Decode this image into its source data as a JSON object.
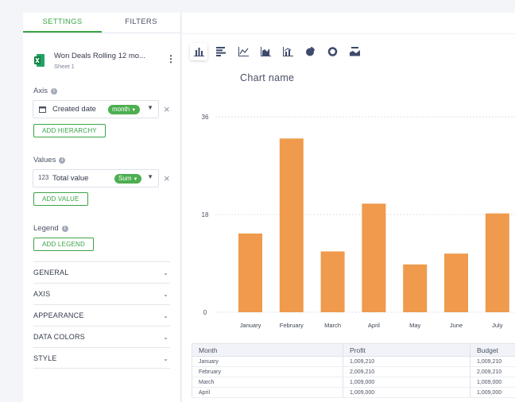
{
  "tabs": [
    {
      "label": "SETTINGS",
      "active": true
    },
    {
      "label": "FILTERS",
      "active": false
    }
  ],
  "source": {
    "name": "Won Deals Rolling 12 mo...",
    "sheet": "Sheet 1",
    "icon": "excel-icon"
  },
  "axis": {
    "label": "Axis",
    "field_label": "Created date",
    "pill": "month",
    "add_button": "ADD HIERARCHY"
  },
  "values_section": {
    "label": "Values",
    "field_label": "Total value",
    "field_icon": "123",
    "pill": "Sum",
    "add_button": "ADD VALUE"
  },
  "legend": {
    "label": "Legend",
    "add_button": "ADD LEGEND"
  },
  "accordion": [
    "GENERAL",
    "AXIS",
    "APPEARANCE",
    "DATA COLORS",
    "STYLE"
  ],
  "toolbar": [
    "bar-chart-icon",
    "horizontal-bar-icon",
    "line-chart-icon",
    "area-chart-icon",
    "combo-chart-icon",
    "pie-chart-icon",
    "donut-chart-icon",
    "number-chart-icon"
  ],
  "colors": {
    "accent": "#3aa545",
    "bar": "#ef9a4c"
  },
  "chart_data": {
    "type": "bar",
    "title": "Chart name",
    "categories": [
      "January",
      "February",
      "March",
      "April",
      "May",
      "June",
      "July"
    ],
    "values": [
      14.5,
      32,
      11.2,
      20,
      8.8,
      10.8,
      18.2
    ],
    "ylim": [
      0,
      36
    ],
    "yticks": [
      "0",
      "18",
      "36"
    ],
    "grid": true
  },
  "table": {
    "columns": [
      "Month",
      "Profit",
      "Budget"
    ],
    "rows": [
      [
        "January",
        "1,009,210",
        "1,009,210"
      ],
      [
        "February",
        "2,009,210",
        "2,009,210"
      ],
      [
        "March",
        "1,009,000",
        "1,009,000"
      ],
      [
        "April",
        "1,009,000",
        "1,009,000"
      ]
    ]
  }
}
